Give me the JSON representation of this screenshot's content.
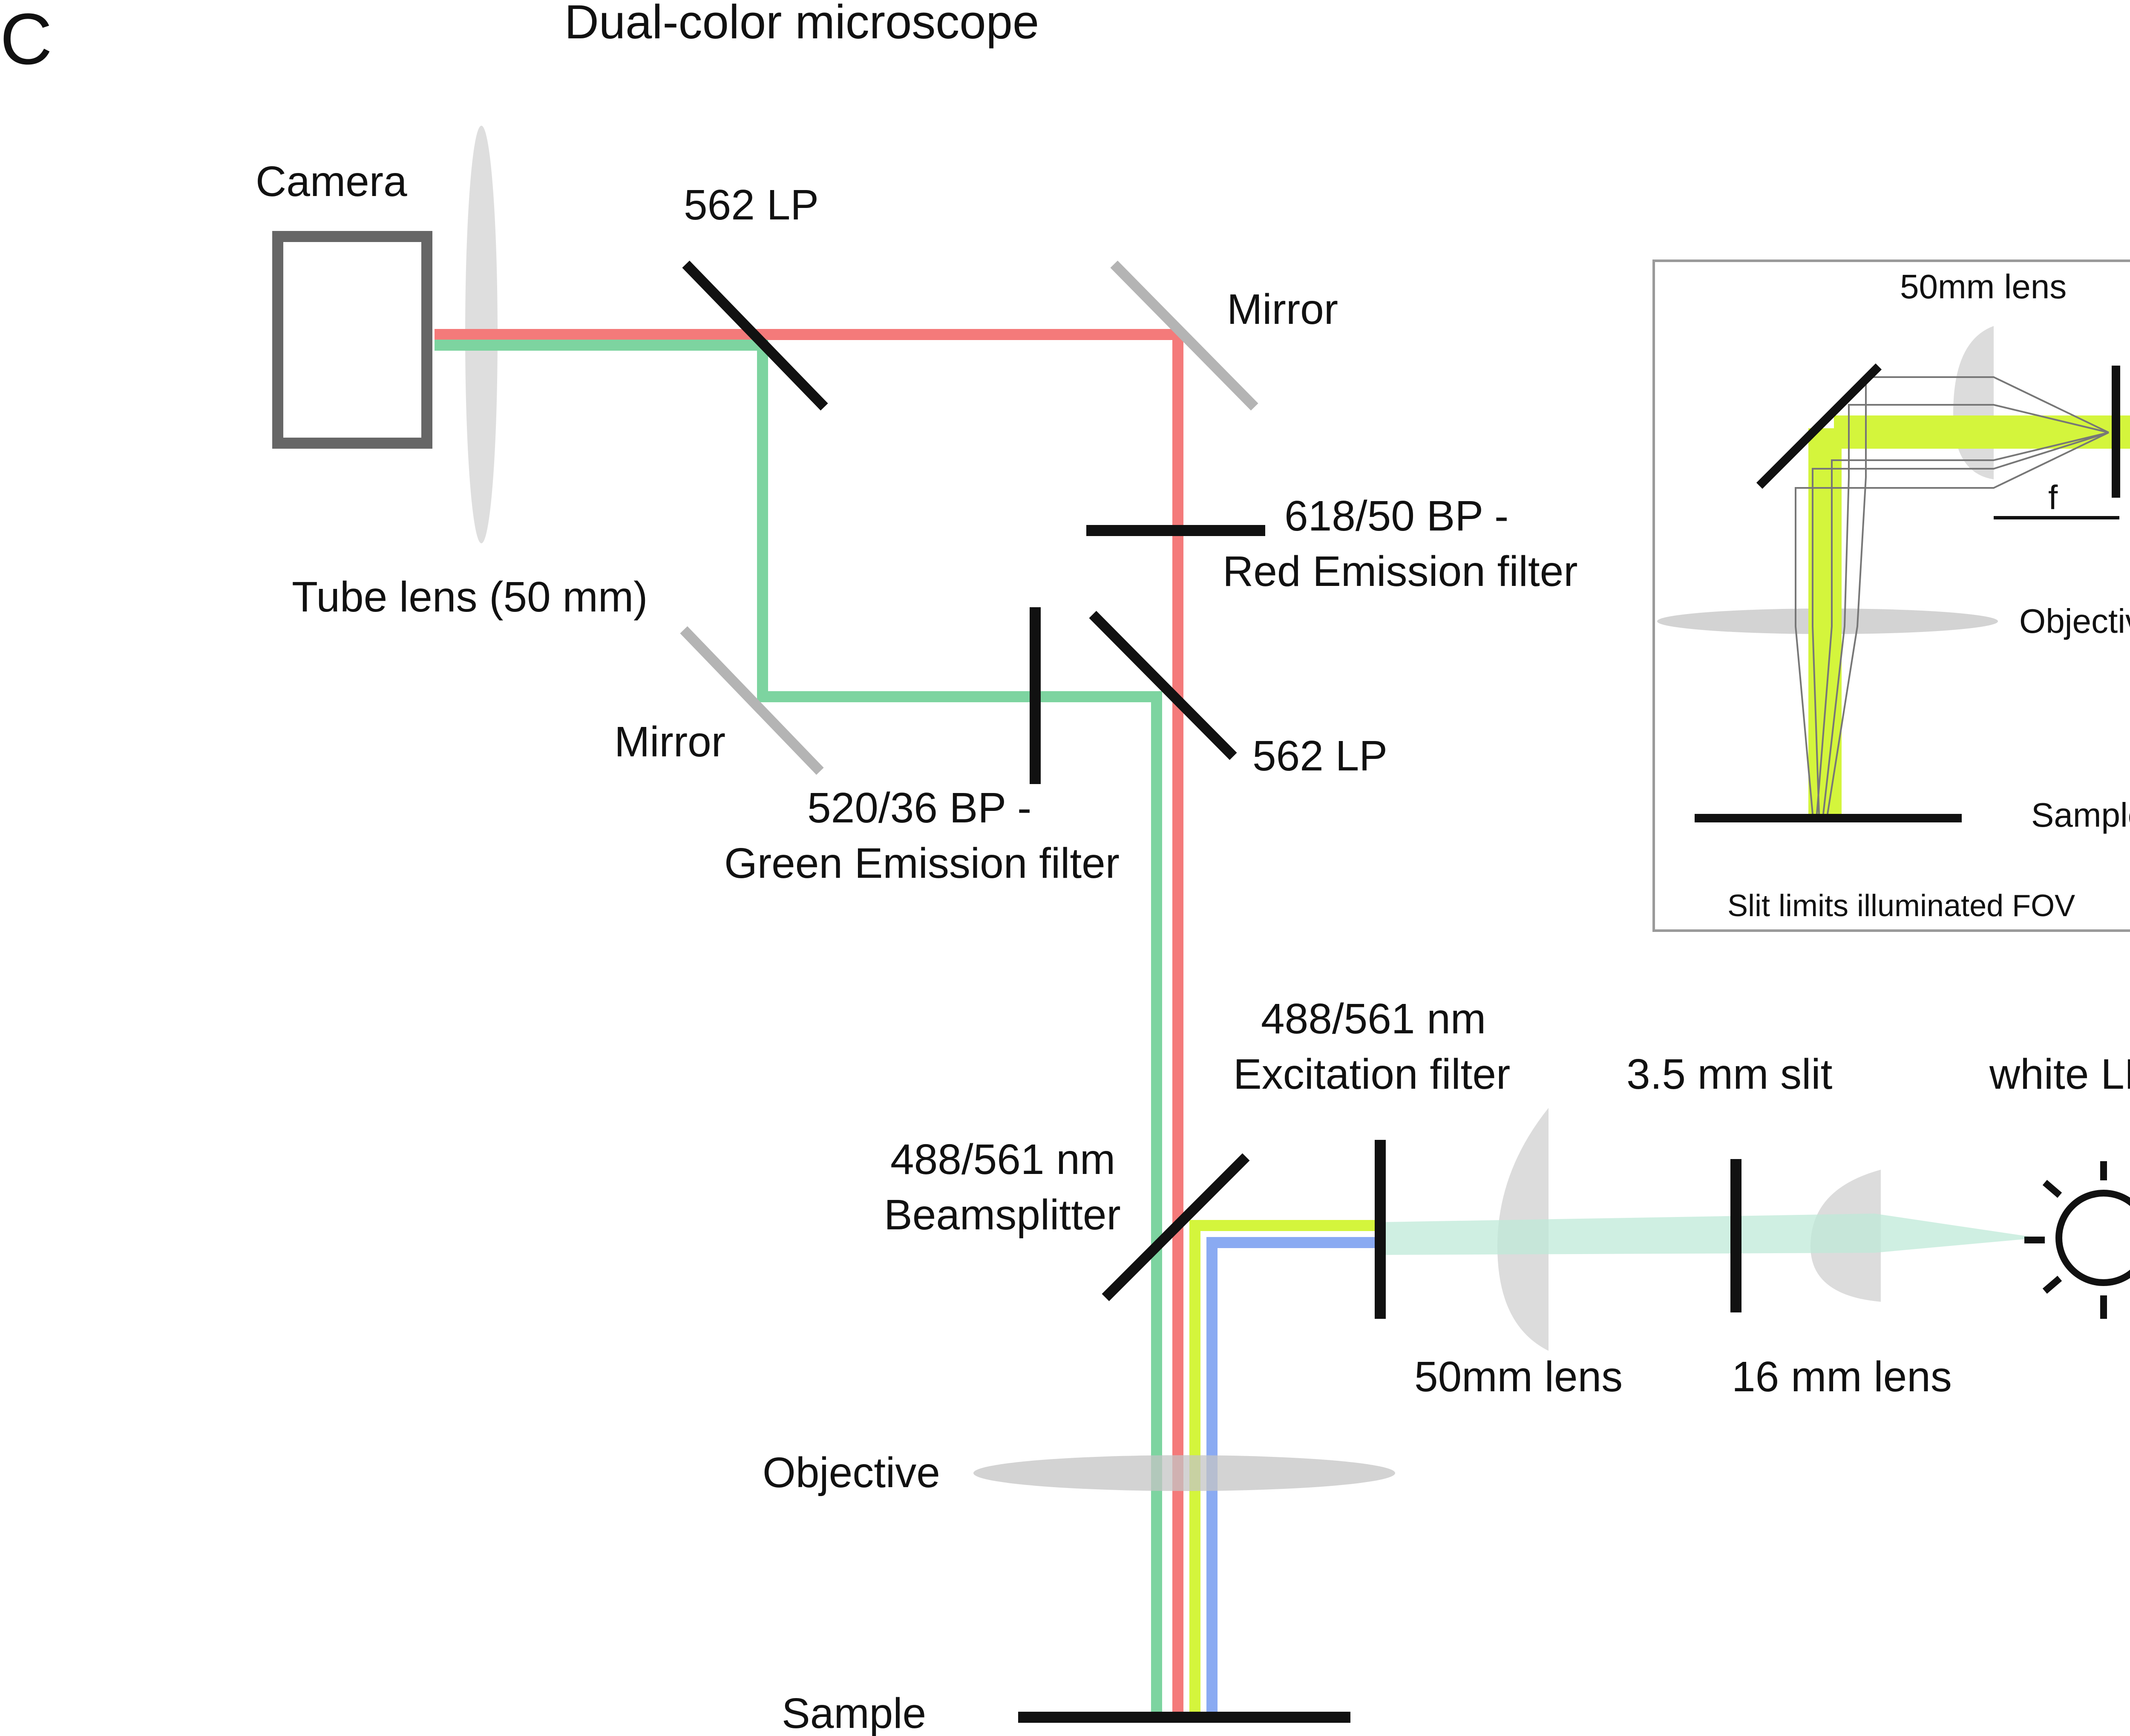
{
  "panel_letter": "C",
  "title": "Dual-color microscope",
  "labels": {
    "camera": "Camera",
    "tube_lens": "Tube lens (50 mm)",
    "dichroic_top": "562 LP",
    "mirror_top": "Mirror",
    "red_filter_line1": "618/50 BP -",
    "red_filter_line2": "Red Emission filter",
    "mirror_left": "Mirror",
    "dichroic_mid": "562 LP",
    "green_filter_line1": "520/36 BP -",
    "green_filter_line2": "Green Emission filter",
    "excitation_line1": "488/561 nm",
    "excitation_line2": "Excitation filter",
    "slit": "3.5 mm slit",
    "led": "white LED",
    "beamsplitter_line1": "488/561 nm",
    "beamsplitter_line2": "Beamsplitter",
    "lens_50": "50mm lens",
    "lens_16": "16 mm lens",
    "objective": "Objective",
    "sample": "Sample"
  },
  "inset": {
    "lens": "50mm lens",
    "focal": "f",
    "objective": "Objective",
    "sample": "Sample",
    "caption": "Slit limits illuminated FOV"
  },
  "colors": {
    "red_beam": "#f47a7a",
    "green_beam": "#7dd4a0",
    "yellow_beam": "#d4f53c",
    "blue_beam": "#8aaaf2",
    "led_beam": "#bfead8",
    "mirror_gray": "#b4b4b4",
    "lens_gray": "#d6d6d6",
    "optic_black": "#111111",
    "camera_gray": "#666666"
  }
}
